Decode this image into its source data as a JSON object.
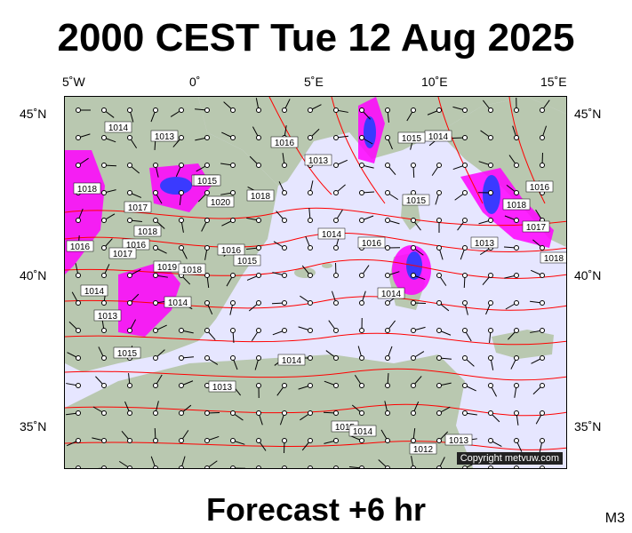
{
  "header": {
    "title": "2000 CEST Tue 12 Aug 2025"
  },
  "footer": {
    "forecast": "Forecast +6 hr",
    "model": "M3"
  },
  "axes": {
    "lon_ticks": [
      "5˚W",
      "0˚",
      "5˚E",
      "10˚E",
      "15˚E"
    ],
    "lat_ticks": [
      "45˚N",
      "40˚N",
      "35˚N"
    ]
  },
  "map": {
    "copyright": "Copyright metvuw.com",
    "isobar_labels": [
      "1014",
      "1013",
      "1016",
      "1013",
      "1015",
      "1014",
      "1018",
      "1015",
      "1018",
      "1016",
      "1020",
      "1017",
      "1018",
      "1016",
      "1015",
      "1014",
      "1017",
      "1016",
      "1019",
      "1018",
      "1014",
      "1016",
      "1013",
      "1014",
      "1015",
      "1014",
      "1015",
      "1018",
      "1017",
      "1013",
      "1016",
      "1018",
      "1015",
      "1014",
      "1013",
      "1012",
      "1013",
      "1015",
      "1014"
    ],
    "colors": {
      "sea": "#e6e6ff",
      "land": "#b9c8b0",
      "isobar": "#ff0000",
      "rain_heavy": "#ff00ff",
      "rain_core": "#3a3aff"
    }
  }
}
